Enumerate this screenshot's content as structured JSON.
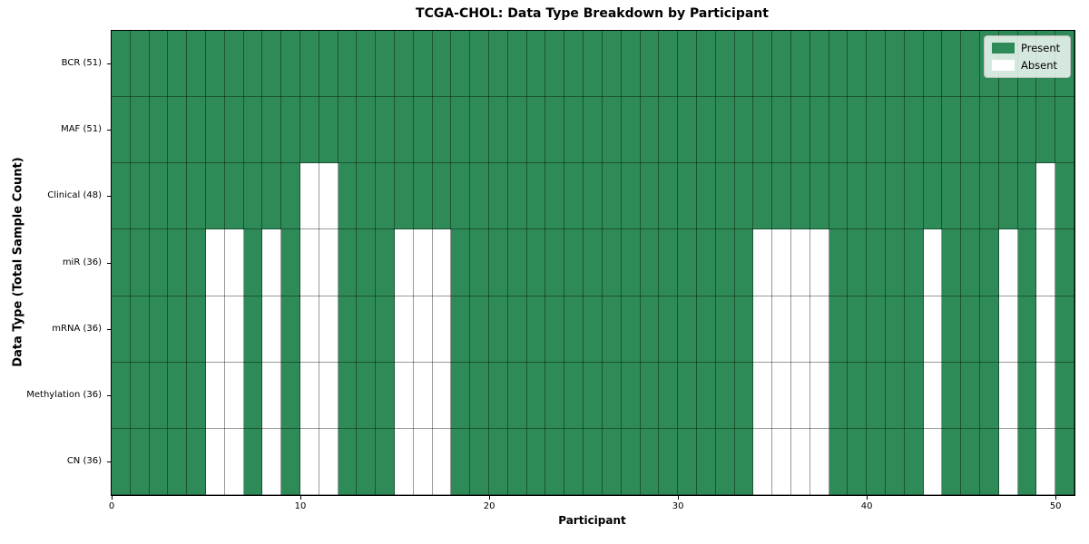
{
  "chart_data": {
    "type": "heatmap",
    "title": "TCGA-CHOL: Data Type Breakdown by Participant",
    "xlabel": "Participant",
    "ylabel": "Data Type (Total Sample Count)",
    "x_ticks": [
      0,
      10,
      20,
      30,
      40,
      50
    ],
    "xlim": [
      0,
      51
    ],
    "n_participants": 51,
    "grid": true,
    "legend_position": "upper right",
    "legend": [
      {
        "label": "Present",
        "color": "#2e8b57"
      },
      {
        "label": "Absent",
        "color": "#ffffff"
      }
    ],
    "colors": {
      "present": "#2e8b57",
      "absent": "#ffffff",
      "grid_line": "rgba(0,0,0,0.4)",
      "frame": "#000000"
    },
    "rows": [
      {
        "label": "BCR (51)",
        "total": 51,
        "absent_participants": []
      },
      {
        "label": "MAF (51)",
        "total": 51,
        "absent_participants": []
      },
      {
        "label": "Clinical (48)",
        "total": 48,
        "absent_participants": [
          10,
          11,
          49
        ]
      },
      {
        "label": "miR (36)",
        "total": 36,
        "absent_participants": [
          5,
          6,
          8,
          10,
          11,
          15,
          16,
          17,
          34,
          35,
          36,
          37,
          43,
          47,
          49
        ]
      },
      {
        "label": "mRNA (36)",
        "total": 36,
        "absent_participants": [
          5,
          6,
          8,
          10,
          11,
          15,
          16,
          17,
          34,
          35,
          36,
          37,
          43,
          47,
          49
        ]
      },
      {
        "label": "Methylation (36)",
        "total": 36,
        "absent_participants": [
          5,
          6,
          8,
          10,
          11,
          15,
          16,
          17,
          34,
          35,
          36,
          37,
          43,
          47,
          49
        ]
      },
      {
        "label": "CN (36)",
        "total": 36,
        "absent_participants": [
          5,
          6,
          8,
          10,
          11,
          15,
          16,
          17,
          34,
          35,
          36,
          37,
          43,
          47,
          49
        ]
      }
    ]
  }
}
